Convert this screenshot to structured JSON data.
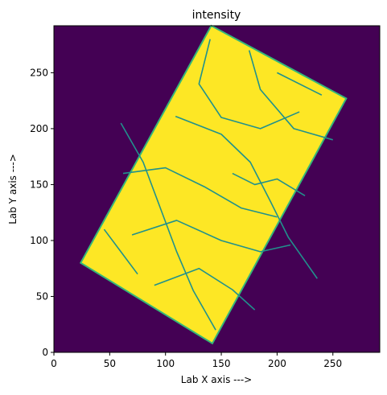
{
  "chart_data": {
    "type": "heatmap",
    "title": "intensity",
    "xlabel": "Lab X axis --->",
    "ylabel": "Lab Y axis --->",
    "xlim": [
      0,
      292
    ],
    "ylim": [
      0,
      292
    ],
    "x_ticks": [
      0,
      50,
      100,
      150,
      200,
      250
    ],
    "y_ticks": [
      0,
      50,
      100,
      150,
      200,
      250
    ],
    "colormap": "viridis",
    "background_color": "#440154",
    "foreground_color": "#fde725",
    "boundary_color": "#21918c",
    "sample_outline": [
      [
        141,
        292
      ],
      [
        262,
        227
      ],
      [
        142,
        8
      ],
      [
        24,
        80
      ]
    ],
    "grain_boundaries": [
      [
        [
          109,
          211
        ],
        [
          150,
          195
        ],
        [
          176,
          170
        ],
        [
          194,
          135
        ],
        [
          210,
          103
        ],
        [
          236,
          66
        ]
      ],
      [
        [
          62,
          160
        ],
        [
          100,
          165
        ],
        [
          135,
          148
        ],
        [
          168,
          129
        ],
        [
          200,
          121
        ]
      ],
      [
        [
          70,
          105
        ],
        [
          110,
          118
        ],
        [
          150,
          100
        ],
        [
          185,
          90
        ],
        [
          212,
          96
        ]
      ],
      [
        [
          90,
          60
        ],
        [
          130,
          75
        ],
        [
          160,
          56
        ],
        [
          180,
          38
        ]
      ],
      [
        [
          140,
          280
        ],
        [
          130,
          240
        ],
        [
          150,
          210
        ],
        [
          185,
          200
        ],
        [
          220,
          215
        ]
      ],
      [
        [
          175,
          270
        ],
        [
          185,
          235
        ],
        [
          215,
          200
        ],
        [
          250,
          190
        ]
      ],
      [
        [
          60,
          205
        ],
        [
          80,
          170
        ],
        [
          95,
          130
        ],
        [
          110,
          90
        ],
        [
          125,
          55
        ],
        [
          145,
          20
        ]
      ],
      [
        [
          160,
          160
        ],
        [
          180,
          150
        ],
        [
          200,
          155
        ],
        [
          225,
          140
        ]
      ],
      [
        [
          45,
          110
        ],
        [
          60,
          90
        ],
        [
          75,
          70
        ]
      ],
      [
        [
          200,
          250
        ],
        [
          240,
          230
        ]
      ]
    ]
  }
}
